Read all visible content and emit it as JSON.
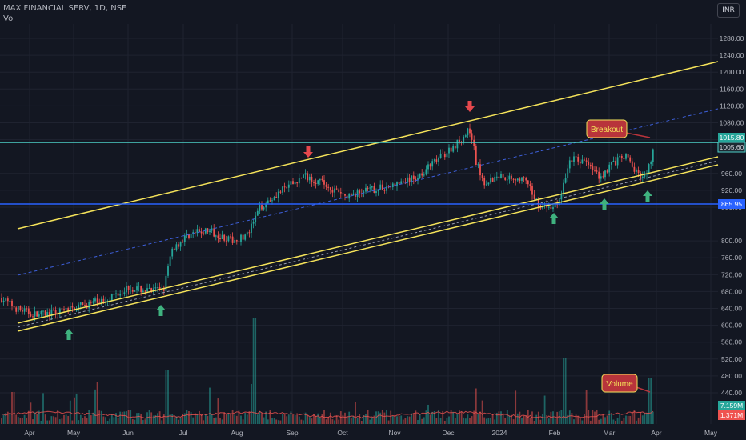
{
  "header": {
    "title": "MAX FINANCIAL SERV, 1D, NSE",
    "volume_label": "Vol",
    "currency_button": "INR"
  },
  "colors": {
    "background": "#131722",
    "grid": "#1f2330",
    "axis_text": "#b2b5be",
    "up_candle": "#26a69a",
    "down_candle": "#ef5350",
    "channel_line": "#f5e35a",
    "horizontal_teal": "#4dd0c8",
    "horizontal_blue": "#2962ff",
    "midline_dashed": "#3d5fd9",
    "arrow_up": "#3fb27f",
    "arrow_down": "#e5484d",
    "callout_bg": "#b8343b",
    "callout_text": "#f5e35a"
  },
  "price_axis": {
    "ticks": [
      "1280.00",
      "1240.00",
      "1200.00",
      "1160.00",
      "1120.00",
      "1080.00",
      "1040.00",
      "960.00",
      "920.00",
      "880.00",
      "800.00",
      "760.00",
      "720.00",
      "680.00",
      "640.00",
      "600.00",
      "560.00",
      "520.00",
      "480.00",
      "440.00"
    ],
    "labels": {
      "last_price": "1015.80",
      "level_teal": "1005.60",
      "level_blue": "865.95",
      "volume_current": "7.159M",
      "volume_average": "1.371M"
    }
  },
  "time_axis": {
    "ticks": [
      "Apr",
      "May",
      "Jun",
      "Jul",
      "Aug",
      "Sep",
      "Oct",
      "Nov",
      "Dec",
      "2024",
      "Feb",
      "Mar",
      "Apr",
      "May"
    ]
  },
  "annotations": {
    "breakout": "Breakout",
    "volume": "Volume"
  },
  "chart_data": {
    "type": "candlestick",
    "symbol": "MAX FINANCIAL SERV",
    "interval": "1D",
    "exchange": "NSE",
    "currency": "INR",
    "ylim": [
      420,
      1290
    ],
    "last_close": 1015.8,
    "horizontal_levels": [
      {
        "price": 1005.6,
        "color": "teal"
      },
      {
        "price": 865.95,
        "color": "blue"
      }
    ],
    "monthly_closes_approx": [
      {
        "month": "Apr",
        "close": 630
      },
      {
        "month": "May",
        "close": 650
      },
      {
        "month": "Jun",
        "close": 690
      },
      {
        "month": "Jul",
        "close": 820
      },
      {
        "month": "Aug",
        "close": 880
      },
      {
        "month": "Sep",
        "close": 950
      },
      {
        "month": "Oct",
        "close": 905
      },
      {
        "month": "Nov",
        "close": 935
      },
      {
        "month": "Dec",
        "close": 1050
      },
      {
        "month": "2024",
        "close": 930
      },
      {
        "month": "Feb",
        "close": 990
      },
      {
        "month": "Mar",
        "close": 960
      }
    ],
    "grid": true
  }
}
